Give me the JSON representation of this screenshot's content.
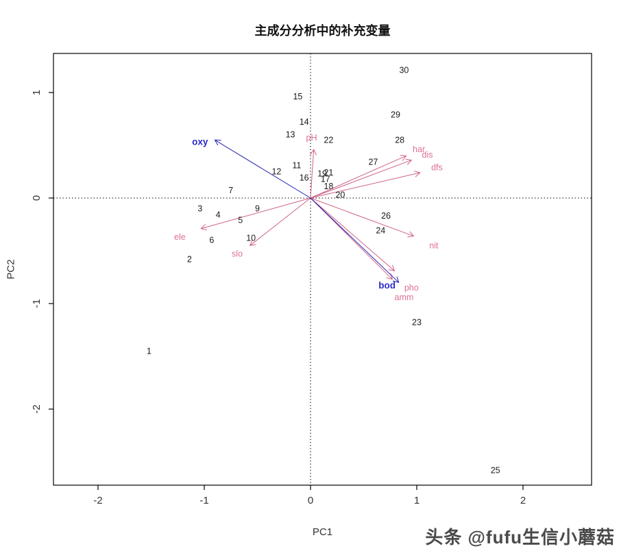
{
  "title": "主成分分析中的补充变量",
  "watermark": "头条 @fufu生信小蘑菇",
  "chart_data": {
    "type": "scatter",
    "title": "主成分分析中的补充变量",
    "xlabel": "PC1",
    "ylabel": "PC2",
    "xlim": [
      -2.42,
      2.65
    ],
    "ylim": [
      -2.72,
      1.37
    ],
    "xticks": [
      -2,
      -1,
      0,
      1,
      2
    ],
    "yticks": [
      1,
      0,
      -1,
      -2
    ],
    "zero_lines": "dotted",
    "legend": "none",
    "colors": {
      "site_text": "#1a1a1a",
      "env_arrow": "#cf6186",
      "env_label": "#dd7093",
      "supp_arrow": "#2323b0",
      "supp_label": "#2a2ac8",
      "axis_text": "#333333",
      "box": "#000000"
    },
    "sites": [
      {
        "id": "1",
        "x": -1.52,
        "y": -1.45
      },
      {
        "id": "2",
        "x": -1.14,
        "y": -0.58
      },
      {
        "id": "3",
        "x": -1.04,
        "y": -0.1
      },
      {
        "id": "4",
        "x": -0.87,
        "y": -0.16
      },
      {
        "id": "5",
        "x": -0.66,
        "y": -0.21
      },
      {
        "id": "6",
        "x": -0.93,
        "y": -0.4
      },
      {
        "id": "7",
        "x": -0.75,
        "y": 0.07
      },
      {
        "id": "9",
        "x": -0.5,
        "y": -0.1
      },
      {
        "id": "10",
        "x": -0.56,
        "y": -0.38
      },
      {
        "id": "11",
        "x": -0.13,
        "y": 0.31
      },
      {
        "id": "12",
        "x": -0.32,
        "y": 0.25
      },
      {
        "id": "13",
        "x": -0.19,
        "y": 0.6
      },
      {
        "id": "14",
        "x": -0.06,
        "y": 0.72
      },
      {
        "id": "15",
        "x": -0.12,
        "y": 0.96
      },
      {
        "id": "16",
        "x": -0.06,
        "y": 0.19
      },
      {
        "id": "17",
        "x": 0.14,
        "y": 0.18
      },
      {
        "id": "18",
        "x": 0.17,
        "y": 0.11
      },
      {
        "id": "19",
        "x": 0.11,
        "y": 0.23
      },
      {
        "id": "20",
        "x": 0.28,
        "y": 0.03
      },
      {
        "id": "21",
        "x": 0.17,
        "y": 0.24
      },
      {
        "id": "22",
        "x": 0.17,
        "y": 0.55
      },
      {
        "id": "23",
        "x": 1.0,
        "y": -1.18
      },
      {
        "id": "24",
        "x": 0.66,
        "y": -0.31
      },
      {
        "id": "25",
        "x": 1.74,
        "y": -2.58
      },
      {
        "id": "26",
        "x": 0.71,
        "y": -0.17
      },
      {
        "id": "27",
        "x": 0.59,
        "y": 0.34
      },
      {
        "id": "28",
        "x": 0.84,
        "y": 0.55
      },
      {
        "id": "29",
        "x": 0.8,
        "y": 0.79
      },
      {
        "id": "30",
        "x": 0.88,
        "y": 1.21
      }
    ],
    "arrows": [
      {
        "name": "ele",
        "x": -1.03,
        "y": -0.29,
        "lx": -1.23,
        "ly": -0.37,
        "group": "env"
      },
      {
        "name": "slo",
        "x": -0.57,
        "y": -0.45,
        "lx": -0.69,
        "ly": -0.53,
        "group": "env"
      },
      {
        "name": "pH",
        "x": 0.03,
        "y": 0.46,
        "lx": 0.01,
        "ly": 0.57,
        "group": "env"
      },
      {
        "name": "har",
        "x": 0.9,
        "y": 0.4,
        "lx": 1.02,
        "ly": 0.46,
        "group": "env"
      },
      {
        "name": "dis",
        "x": 0.95,
        "y": 0.36,
        "lx": 1.1,
        "ly": 0.41,
        "group": "env"
      },
      {
        "name": "dfs",
        "x": 1.03,
        "y": 0.24,
        "lx": 1.19,
        "ly": 0.29,
        "group": "env"
      },
      {
        "name": "nit",
        "x": 0.97,
        "y": -0.36,
        "lx": 1.16,
        "ly": -0.45,
        "group": "env"
      },
      {
        "name": "pho",
        "x": 0.79,
        "y": -0.69,
        "lx": 0.95,
        "ly": -0.85,
        "group": "env"
      },
      {
        "name": "amm",
        "x": 0.77,
        "y": -0.77,
        "lx": 0.88,
        "ly": -0.94,
        "group": "env"
      },
      {
        "name": "oxy",
        "x": -0.9,
        "y": 0.55,
        "lx": -1.04,
        "ly": 0.53,
        "group": "supp"
      },
      {
        "name": "bod",
        "x": 0.83,
        "y": -0.8,
        "lx": 0.72,
        "ly": -0.83,
        "group": "supp"
      }
    ]
  }
}
